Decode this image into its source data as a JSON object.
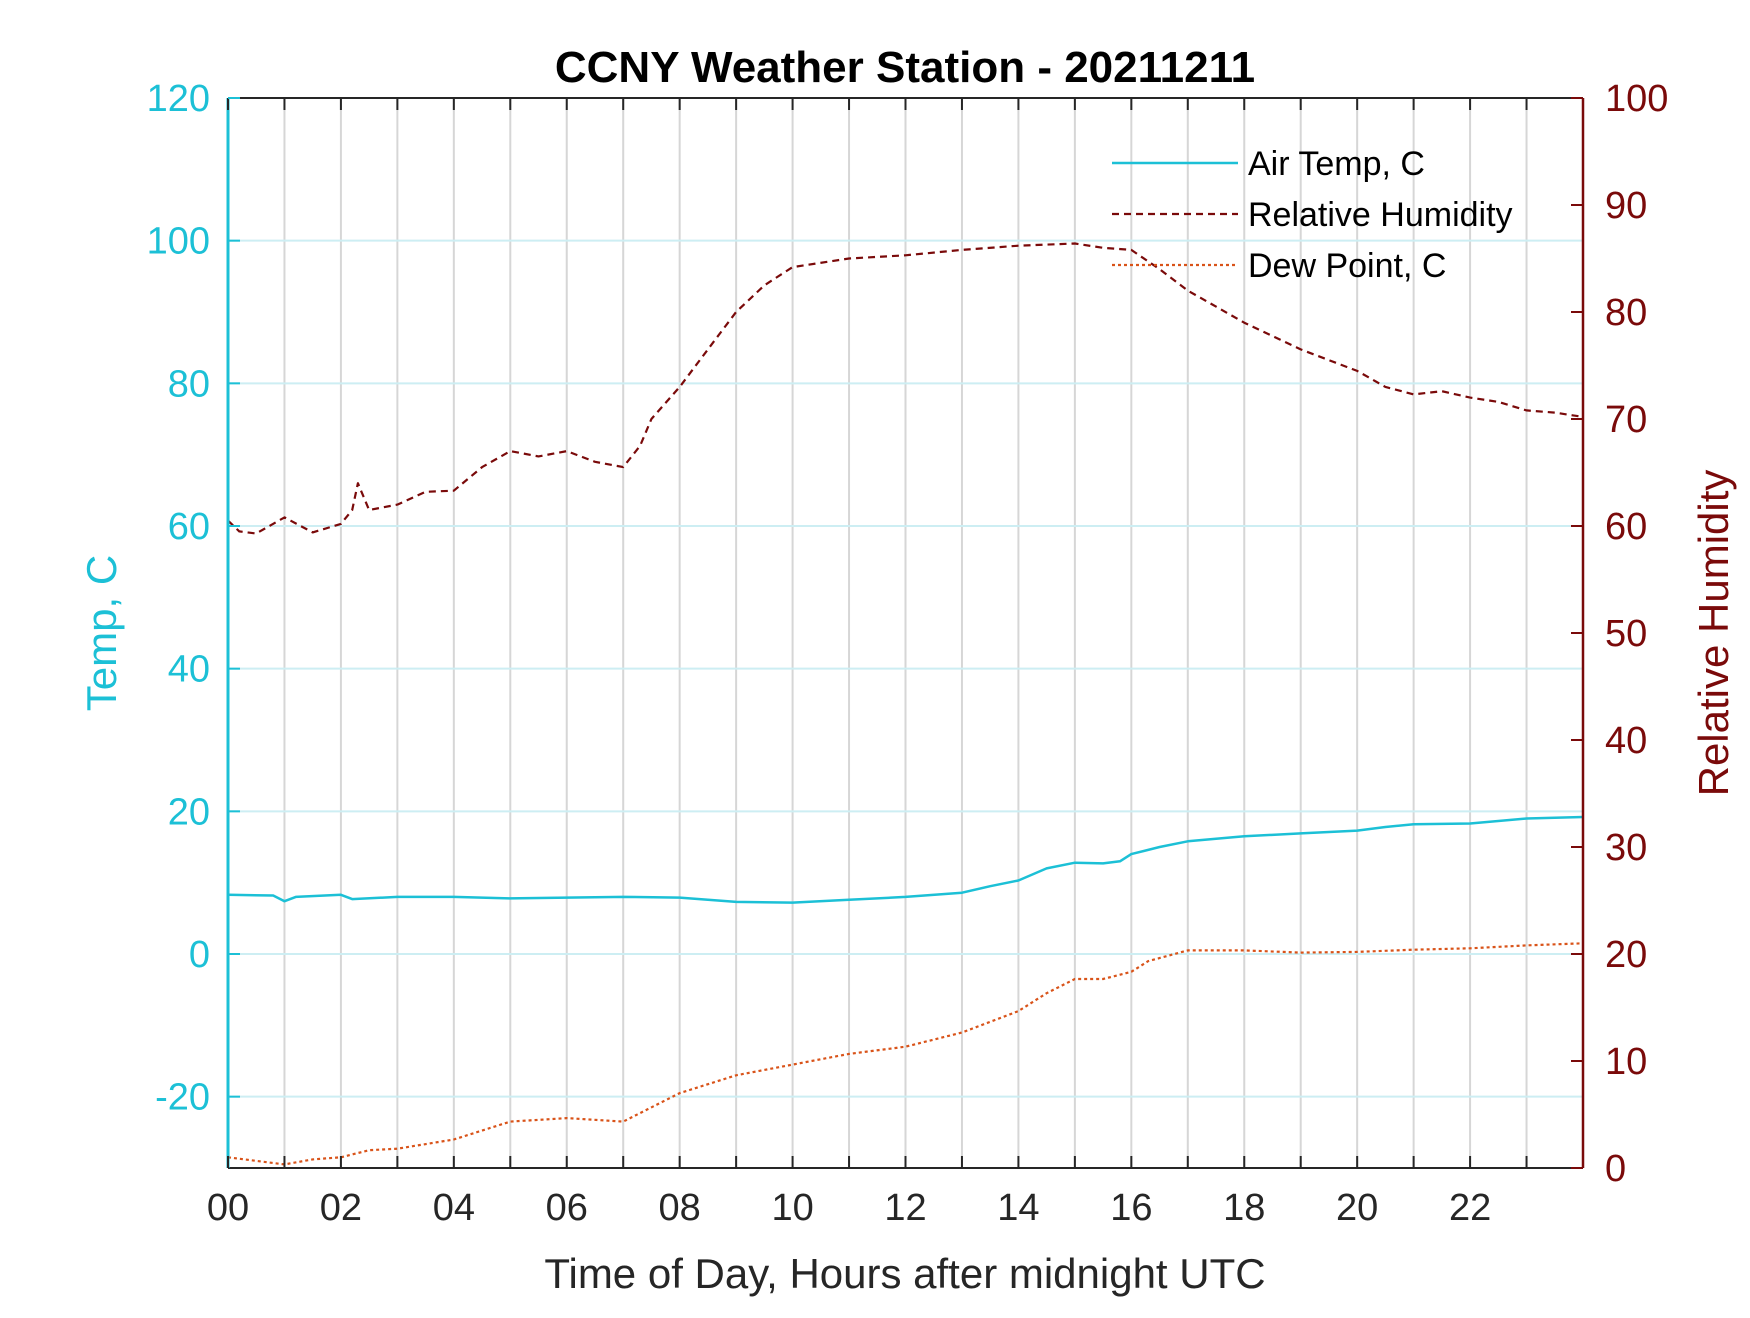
{
  "chart_data": {
    "type": "line",
    "title": "CCNY Weather Station - 20211211",
    "xlabel": "Time of Day, Hours after midnight UTC",
    "xlim": [
      0,
      24
    ],
    "xticks": [
      0,
      2,
      4,
      6,
      8,
      10,
      12,
      14,
      16,
      18,
      20,
      22
    ],
    "xtick_labels": [
      "00",
      "02",
      "04",
      "06",
      "08",
      "10",
      "12",
      "14",
      "16",
      "18",
      "20",
      "22"
    ],
    "vertical_gridlines_every_hours": 1,
    "left_axis": {
      "label": "Temp, C",
      "ylim": [
        -30,
        120
      ],
      "ticks": [
        120,
        100,
        80,
        60,
        40,
        20,
        0,
        -20
      ],
      "tick_labels": [
        "120",
        "100",
        "80",
        "60",
        "40",
        "20",
        "0",
        "-20"
      ],
      "color": "#1cc0d6"
    },
    "right_axis": {
      "label": "Relative Humidity",
      "ylim": [
        0,
        100
      ],
      "ticks": [
        100,
        90,
        80,
        70,
        60,
        50,
        40,
        30,
        20,
        10,
        0
      ],
      "tick_labels": [
        "100",
        "90",
        "80",
        "70",
        "60",
        "50",
        "40",
        "30",
        "20",
        "10",
        "0"
      ],
      "color": "#7a0a0a"
    },
    "grid": true,
    "legend_position": "top-right",
    "series": [
      {
        "name": "Air Temp, C",
        "axis": "left",
        "color": "#1cc0d6",
        "style": "solid",
        "x": [
          0,
          0.8,
          1.0,
          1.2,
          2.0,
          2.2,
          3.0,
          4.0,
          5.0,
          6.0,
          7.0,
          8.0,
          9.0,
          10.0,
          11.0,
          12.0,
          13.0,
          13.5,
          14.0,
          14.5,
          15.0,
          15.5,
          15.8,
          16.0,
          16.5,
          17.0,
          18.0,
          19.0,
          20.0,
          20.5,
          21.0,
          22.0,
          23.0,
          24.0
        ],
        "y": [
          8.3,
          8.2,
          7.4,
          8.0,
          8.3,
          7.7,
          8.0,
          8.0,
          7.8,
          7.9,
          8.0,
          7.9,
          7.3,
          7.2,
          7.6,
          8.0,
          8.6,
          9.5,
          10.3,
          12.0,
          12.8,
          12.7,
          13.0,
          14.0,
          15.0,
          15.8,
          16.5,
          16.9,
          17.3,
          17.8,
          18.2,
          18.3,
          19.0,
          19.2
        ]
      },
      {
        "name": "Relative Humidity",
        "axis": "right",
        "color": "#7a0a0a",
        "style": "dashed",
        "x": [
          0,
          0.2,
          0.5,
          1.0,
          1.5,
          2.0,
          2.2,
          2.3,
          2.5,
          3.0,
          3.5,
          4.0,
          4.5,
          5.0,
          5.5,
          6.0,
          6.5,
          7.0,
          7.3,
          7.5,
          8.0,
          8.5,
          9.0,
          9.5,
          10.0,
          11.0,
          12.0,
          13.0,
          14.0,
          15.0,
          15.5,
          16.0,
          16.5,
          17.0,
          17.5,
          18.0,
          19.0,
          20.0,
          20.5,
          21.0,
          21.5,
          22.0,
          22.5,
          23.0,
          23.5,
          24.0
        ],
        "y": [
          60.5,
          59.5,
          59.3,
          60.8,
          59.4,
          60.2,
          61.5,
          64.0,
          61.5,
          62.0,
          63.2,
          63.3,
          65.5,
          67.0,
          66.5,
          67.0,
          66.0,
          65.5,
          67.5,
          70.0,
          73.0,
          76.5,
          80.0,
          82.5,
          84.2,
          85.0,
          85.3,
          85.8,
          86.2,
          86.4,
          86.0,
          85.8,
          84.0,
          82.0,
          80.5,
          79.0,
          76.5,
          74.5,
          73.0,
          72.3,
          72.6,
          72.0,
          71.6,
          70.8,
          70.6,
          70.2
        ]
      },
      {
        "name": "Dew Point, C",
        "axis": "left",
        "color": "#d95319",
        "style": "dotted",
        "x": [
          0,
          0.5,
          1.0,
          1.5,
          2.0,
          2.5,
          3.0,
          4.0,
          5.0,
          6.0,
          7.0,
          8.0,
          9.0,
          10.0,
          11.0,
          12.0,
          13.0,
          14.0,
          14.5,
          15.0,
          15.5,
          16.0,
          16.3,
          17.0,
          18.0,
          19.0,
          20.0,
          21.0,
          22.0,
          23.0,
          24.0
        ],
        "y": [
          -28.5,
          -29.0,
          -29.5,
          -28.8,
          -28.5,
          -27.5,
          -27.3,
          -26.0,
          -23.5,
          -23.0,
          -23.5,
          -19.5,
          -17.0,
          -15.5,
          -14.0,
          -13.0,
          -11.0,
          -8.0,
          -5.5,
          -3.5,
          -3.5,
          -2.5,
          -1.0,
          0.5,
          0.5,
          0.2,
          0.3,
          0.6,
          0.8,
          1.2,
          1.5
        ]
      }
    ]
  }
}
